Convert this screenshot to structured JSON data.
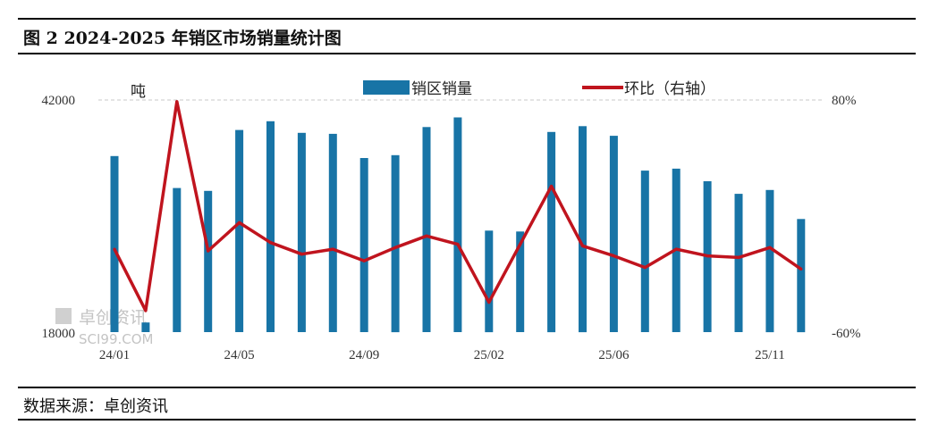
{
  "figure": {
    "title": "图 2 2024-2025 年销区市场销量统计图",
    "source": "数据来源：卓创资讯"
  },
  "watermark": {
    "name": "卓创资讯",
    "url": "SCI99.COM"
  },
  "chart_data": {
    "type": "bar+line",
    "title": "",
    "y_left": {
      "unit": "吨",
      "range": [
        18000,
        42000
      ],
      "tick_labels": [
        "42000",
        "18000"
      ]
    },
    "y_right": {
      "range": [
        -60,
        80
      ],
      "tick_labels": [
        "80%",
        "-60%"
      ]
    },
    "x_tick_labels": [
      "24/01",
      "24/05",
      "24/09",
      "25/02",
      "25/06",
      "25/11"
    ],
    "x_tick_indices": [
      0,
      4,
      8,
      12,
      16,
      21
    ],
    "series": [
      {
        "name": "销区销量",
        "kind": "bar",
        "axis": "left",
        "color": "#1874a6",
        "values": [
          36200,
          19000,
          32900,
          32600,
          38900,
          39800,
          38600,
          38500,
          36000,
          36300,
          39200,
          40200,
          28500,
          28400,
          38700,
          39300,
          38300,
          34700,
          34900,
          33600,
          32300,
          32700,
          29700
        ]
      },
      {
        "name": "环比（右轴）",
        "kind": "line",
        "axis": "right",
        "color": "#c0141e",
        "values": [
          -10,
          -47,
          79,
          -11,
          6,
          -6,
          -13,
          -10,
          -17,
          -9,
          -2,
          -7,
          -42,
          -7,
          28,
          -8,
          -14,
          -21,
          -10,
          -14,
          -15,
          -9,
          -22
        ]
      }
    ],
    "grid": "dashed-top-line",
    "legend": "top-center"
  }
}
